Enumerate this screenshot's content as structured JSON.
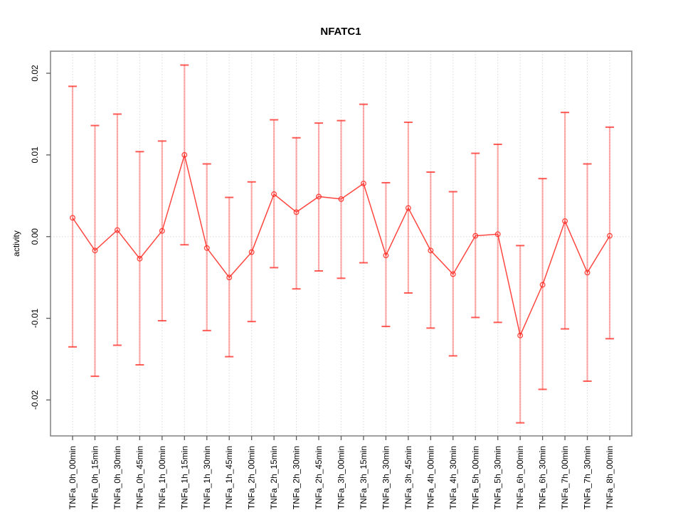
{
  "window": {
    "title": "NFATC1"
  },
  "chart_data": {
    "type": "line",
    "title": "NFATC1",
    "xlabel": "",
    "ylabel": "activity",
    "legend_position": "none",
    "grid": {
      "vertical_dotted": true,
      "horizontal_zero_dotted": true
    },
    "ylim": [
      -0.0244,
      0.0227
    ],
    "yticks": [
      0.02,
      0.01,
      0.0,
      -0.01,
      -0.02
    ],
    "ytick_labels": [
      "0.02",
      "0.01",
      "0.00",
      "-0.01",
      "-0.02"
    ],
    "categories": [
      "TNFa_0h_00min",
      "TNFa_0h_15min",
      "TNFa_0h_30min",
      "TNFa_0h_45min",
      "TNFa_1h_00min",
      "TNFa_1h_15min",
      "TNFa_1h_30min",
      "TNFa_1h_45min",
      "TNFa_2h_00min",
      "TNFa_2h_15min",
      "TNFa_2h_30min",
      "TNFa_2h_45min",
      "TNFa_3h_00min",
      "TNFa_3h_15min",
      "TNFa_3h_30min",
      "TNFa_3h_45min",
      "TNFa_4h_00min",
      "TNFa_4h_30min",
      "TNFa_5h_00min",
      "TNFa_5h_30min",
      "TNFa_6h_00min",
      "TNFa_6h_30min",
      "TNFa_7h_00min",
      "TNFa_7h_30min",
      "TNFa_8h_00min"
    ],
    "series": [
      {
        "name": "activity",
        "values": [
          0.0023,
          -0.0017,
          0.0008,
          -0.0027,
          0.0007,
          0.01,
          -0.0014,
          -0.005,
          -0.0019,
          0.0052,
          0.003,
          0.0049,
          0.0046,
          0.0065,
          -0.0023,
          0.0035,
          -0.0017,
          -0.0046,
          0.0001,
          0.0003,
          -0.0121,
          -0.0059,
          0.0019,
          -0.0044,
          0.0001
        ],
        "error_low": [
          -0.0135,
          -0.0171,
          -0.0133,
          -0.0157,
          -0.0103,
          -0.001,
          -0.0115,
          -0.0147,
          -0.0104,
          -0.0038,
          -0.0064,
          -0.0042,
          -0.0051,
          -0.0032,
          -0.011,
          -0.0069,
          -0.0112,
          -0.0146,
          -0.0099,
          -0.0105,
          -0.0228,
          -0.0187,
          -0.0113,
          -0.0177,
          -0.0125
        ],
        "error_high": [
          0.0184,
          0.0136,
          0.015,
          0.0104,
          0.0117,
          0.021,
          0.0089,
          0.0048,
          0.0067,
          0.0143,
          0.0121,
          0.0139,
          0.0142,
          0.0162,
          0.0066,
          0.014,
          0.0079,
          0.0055,
          0.0102,
          0.0113,
          -0.0011,
          0.0071,
          0.0152,
          0.0089,
          0.0134
        ]
      }
    ],
    "colors": {
      "series_line": "#ff2d27",
      "series_line_opacity": 0.88,
      "error_bar": "#ff2d27",
      "error_bar_opacity": 0.38,
      "error_cap_opacity": 0.78,
      "gridline": "#d9d9d9",
      "axis_box": "#8f8f8f",
      "tick": "#5c5c5c",
      "text": "#000000"
    }
  }
}
